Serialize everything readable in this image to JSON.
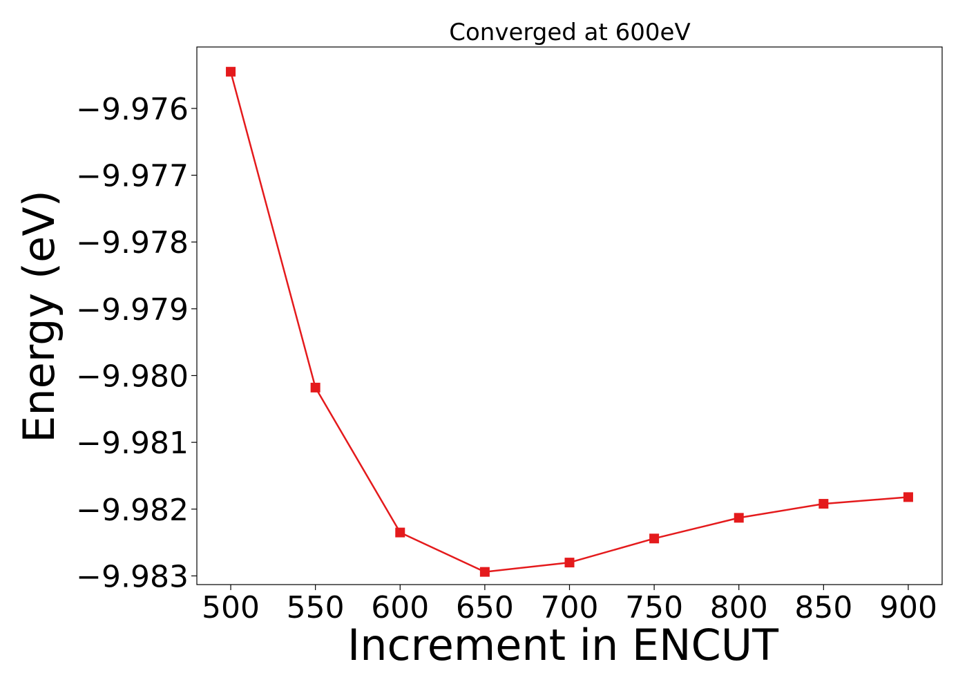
{
  "chart_data": {
    "type": "line",
    "title": "Converged at 600eV",
    "xlabel": "Increment in ENCUT",
    "ylabel": "Energy (eV)",
    "x": [
      500,
      550,
      600,
      650,
      700,
      750,
      800,
      850,
      900
    ],
    "series": [
      {
        "values": [
          -9.97545,
          -9.98018,
          -9.98235,
          -9.98294,
          -9.9828,
          -9.98244,
          -9.98213,
          -9.98192,
          -9.98182
        ],
        "color": "#e41a1c",
        "marker": "square"
      }
    ],
    "xticks": [
      500,
      550,
      600,
      650,
      700,
      750,
      800,
      850,
      900
    ],
    "xtick_labels": [
      "500",
      "550",
      "600",
      "650",
      "700",
      "750",
      "800",
      "850",
      "900"
    ],
    "yticks": [
      -9.976,
      -9.977,
      -9.978,
      -9.979,
      -9.98,
      -9.981,
      -9.982,
      -9.983
    ],
    "ytick_labels": [
      "−9.976",
      "−9.977",
      "−9.978",
      "−9.979",
      "−9.980",
      "−9.981",
      "−9.982",
      "−9.983"
    ],
    "xlim": [
      480,
      920
    ],
    "ylim": [
      -9.98313,
      -9.97508
    ],
    "grid": false,
    "legend": "none"
  }
}
